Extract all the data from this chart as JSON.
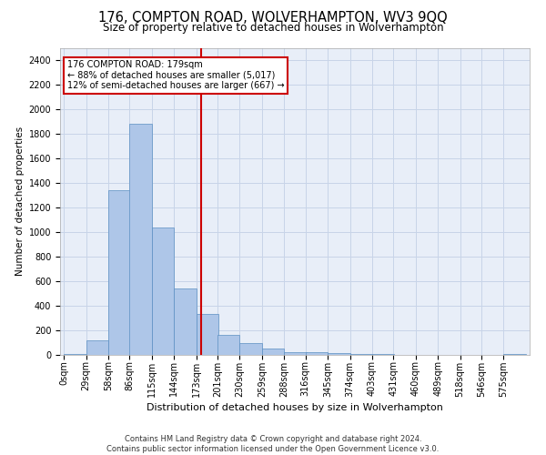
{
  "title": "176, COMPTON ROAD, WOLVERHAMPTON, WV3 9QQ",
  "subtitle": "Size of property relative to detached houses in Wolverhampton",
  "xlabel": "Distribution of detached houses by size in Wolverhampton",
  "ylabel": "Number of detached properties",
  "footer1": "Contains HM Land Registry data © Crown copyright and database right 2024.",
  "footer2": "Contains public sector information licensed under the Open Government Licence v3.0.",
  "bar_labels": [
    "0sqm",
    "29sqm",
    "58sqm",
    "86sqm",
    "115sqm",
    "144sqm",
    "173sqm",
    "201sqm",
    "230sqm",
    "259sqm",
    "288sqm",
    "316sqm",
    "345sqm",
    "374sqm",
    "403sqm",
    "431sqm",
    "460sqm",
    "489sqm",
    "518sqm",
    "546sqm",
    "575sqm"
  ],
  "bar_values": [
    5,
    120,
    1340,
    1880,
    1040,
    540,
    330,
    165,
    100,
    50,
    25,
    20,
    15,
    10,
    5,
    2,
    0,
    0,
    0,
    0,
    5
  ],
  "bar_color": "#aec6e8",
  "bar_edge_color": "#5a8fc2",
  "bar_edge_width": 0.5,
  "background_color": "#ffffff",
  "axes_background": "#e8eef8",
  "grid_color": "#c8d4e8",
  "annotation_line1": "176 COMPTON ROAD: 179sqm",
  "annotation_line2": "← 88% of detached houses are smaller (5,017)",
  "annotation_line3": "12% of semi-detached houses are larger (667) →",
  "annotation_box_color": "#ffffff",
  "annotation_box_edge_color": "#cc0000",
  "redline_x": 179,
  "redline_color": "#cc0000",
  "ylim": [
    0,
    2500
  ],
  "yticks": [
    0,
    200,
    400,
    600,
    800,
    1000,
    1200,
    1400,
    1600,
    1800,
    2000,
    2200,
    2400
  ],
  "bin_width": 29,
  "title_fontsize": 10.5,
  "subtitle_fontsize": 8.5,
  "xlabel_fontsize": 8,
  "ylabel_fontsize": 7.5,
  "tick_fontsize": 7,
  "annotation_fontsize": 7,
  "footer_fontsize": 6
}
